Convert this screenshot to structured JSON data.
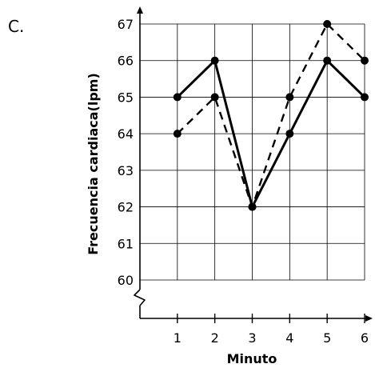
{
  "panel_label": "C.",
  "chart_data": {
    "type": "line",
    "title": "",
    "xlabel": "Minuto",
    "ylabel": "Frecuencia cardiaca(lpm)",
    "x": [
      1,
      2,
      3,
      4,
      5,
      6
    ],
    "x_tick_labels": [
      "1",
      "2",
      "3",
      "4",
      "5",
      "6"
    ],
    "y_tick_labels": [
      "60",
      "61",
      "62",
      "63",
      "64",
      "65",
      "66",
      "67"
    ],
    "xlim": [
      0,
      6
    ],
    "ylim": [
      60,
      67
    ],
    "y_axis_break": true,
    "grid": true,
    "legend": "none",
    "series": [
      {
        "style": "solid",
        "color": "#000000",
        "values": [
          65,
          66,
          62,
          64,
          66,
          65
        ]
      },
      {
        "style": "dashed",
        "color": "#000000",
        "values": [
          64,
          65,
          62,
          65,
          67,
          66
        ]
      }
    ]
  }
}
